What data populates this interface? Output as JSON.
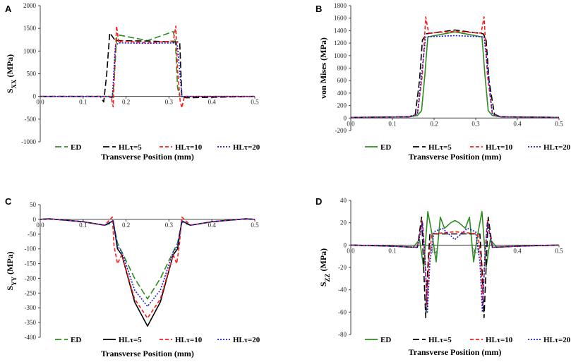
{
  "colors": {
    "ED": "#2e8b1f",
    "HL5": "#000000",
    "HL10": "#ff1a1a",
    "HL20": "#1a1acc"
  },
  "chart_data": [
    {
      "panel": "A",
      "type": "line",
      "xlabel": "Transverse Position (mm)",
      "ylabel": {
        "main": "S",
        "sub": "XX",
        "rest": " (MPa)"
      },
      "xlim": [
        0,
        0.5
      ],
      "ylim": [
        -1000,
        2000
      ],
      "xticks": [
        "0.0",
        "0.1",
        "0.2",
        "0.3",
        "0.4",
        "0.5"
      ],
      "yticks": [
        "2000",
        "1500",
        "1000",
        "500",
        "0",
        "-500",
        "-1000"
      ],
      "legend": [
        "ED",
        "HLτ=5",
        "HLτ=10",
        "HLτ=20"
      ],
      "series": [
        {
          "name": "ED",
          "color": "#2e8b1f",
          "dash": "9 4",
          "x": [
            0,
            0.16,
            0.167,
            0.172,
            0.178,
            0.185,
            0.25,
            0.31,
            0.315,
            0.32,
            0.325,
            0.5
          ],
          "y": [
            0,
            0,
            -60,
            300,
            1300,
            1350,
            1230,
            1430,
            1200,
            200,
            0,
            0
          ]
        },
        {
          "name": "HLτ=5",
          "color": "#000000",
          "dash": "9 4",
          "x": [
            0,
            0.14,
            0.148,
            0.155,
            0.162,
            0.175,
            0.25,
            0.315,
            0.325,
            0.33,
            0.34,
            0.5
          ],
          "y": [
            0,
            0,
            -120,
            500,
            1400,
            1230,
            1220,
            1200,
            1200,
            0,
            -30,
            0
          ]
        },
        {
          "name": "HLτ=10",
          "color": "#ff1a1a",
          "dash": "5 3",
          "x": [
            0,
            0.165,
            0.17,
            0.173,
            0.178,
            0.183,
            0.19,
            0.25,
            0.31,
            0.316,
            0.32,
            0.326,
            0.33,
            0.336,
            0.5
          ],
          "y": [
            0,
            0,
            -230,
            600,
            1550,
            1180,
            1220,
            1180,
            1220,
            1550,
            600,
            -100,
            -250,
            0,
            0
          ]
        },
        {
          "name": "HLτ=20",
          "color": "#1a1acc",
          "dash": "2 2",
          "x": [
            0,
            0.16,
            0.168,
            0.175,
            0.182,
            0.25,
            0.315,
            0.32,
            0.33,
            0.5
          ],
          "y": [
            0,
            0,
            -40,
            1100,
            1180,
            1170,
            1180,
            1100,
            0,
            0
          ]
        }
      ]
    },
    {
      "panel": "B",
      "type": "line",
      "xlabel": "Transverse Position (mm)",
      "ylabel": {
        "main": "von Mises  (MPa)",
        "sub": "",
        "rest": ""
      },
      "xlim": [
        0,
        0.5
      ],
      "ylim": [
        -200,
        1800
      ],
      "xticks": [
        "0.0",
        "0.1",
        "0.2",
        "0.3",
        "0.4",
        "0.5"
      ],
      "yticks": [
        "1800",
        "1600",
        "1400",
        "1200",
        "1000",
        "800",
        "600",
        "400",
        "200",
        "0",
        "-200"
      ],
      "legend": [
        "ED",
        "HLτ=5",
        "HLτ=10",
        "HLτ=20"
      ],
      "series": [
        {
          "name": "ED",
          "color": "#2e8b1f",
          "dash": "",
          "x": [
            0,
            0.14,
            0.16,
            0.17,
            0.178,
            0.185,
            0.25,
            0.315,
            0.322,
            0.33,
            0.34,
            0.36,
            0.5
          ],
          "y": [
            10,
            20,
            40,
            120,
            700,
            1300,
            1380,
            1300,
            700,
            120,
            40,
            20,
            10
          ]
        },
        {
          "name": "HLτ=5",
          "color": "#000000",
          "dash": "9 4",
          "x": [
            0,
            0.14,
            0.155,
            0.165,
            0.172,
            0.182,
            0.25,
            0.318,
            0.325,
            0.332,
            0.345,
            0.36,
            0.5
          ],
          "y": [
            10,
            20,
            60,
            600,
            1250,
            1350,
            1410,
            1350,
            1250,
            600,
            60,
            20,
            10
          ]
        },
        {
          "name": "HLτ=10",
          "color": "#ff1a1a",
          "dash": "5 3",
          "x": [
            0,
            0.14,
            0.16,
            0.172,
            0.18,
            0.187,
            0.25,
            0.313,
            0.32,
            0.328,
            0.34,
            0.36,
            0.5
          ],
          "y": [
            10,
            20,
            60,
            700,
            1620,
            1360,
            1390,
            1360,
            1620,
            700,
            60,
            20,
            10
          ]
        },
        {
          "name": "HLτ=20",
          "color": "#1a1acc",
          "dash": "2 2",
          "x": [
            0,
            0.14,
            0.16,
            0.17,
            0.18,
            0.25,
            0.32,
            0.33,
            0.34,
            0.36,
            0.5
          ],
          "y": [
            10,
            20,
            60,
            700,
            1300,
            1320,
            1300,
            700,
            60,
            20,
            10
          ]
        }
      ]
    },
    {
      "panel": "C",
      "type": "line",
      "xlabel": "Transverse Position (mm)",
      "ylabel": {
        "main": "S",
        "sub": "YY",
        "rest": " (MPa)"
      },
      "xlim": [
        0,
        0.5
      ],
      "ylim": [
        -400,
        50
      ],
      "xticks": [
        "0.0",
        "0.1",
        "0.2",
        "0.3",
        "0.4",
        "0.5"
      ],
      "yticks": [
        "50",
        "0",
        "-50",
        "-100",
        "-150",
        "-200",
        "-250",
        "-300",
        "-350",
        "-400"
      ],
      "legend": [
        "ED",
        "HLτ=5",
        "HLτ=10",
        "HLτ=20"
      ],
      "series": [
        {
          "name": "ED",
          "color": "#2e8b1f",
          "dash": "9 4",
          "x": [
            0,
            0.02,
            0.1,
            0.15,
            0.17,
            0.18,
            0.19,
            0.22,
            0.25,
            0.28,
            0.31,
            0.32,
            0.33,
            0.35,
            0.4,
            0.48,
            0.5
          ],
          "y": [
            0,
            2,
            -8,
            -20,
            -10,
            -80,
            -110,
            -200,
            -270,
            -200,
            -110,
            -80,
            -10,
            -20,
            -8,
            2,
            0
          ]
        },
        {
          "name": "HLτ=5",
          "color": "#000000",
          "dash": "",
          "x": [
            0,
            0.02,
            0.1,
            0.15,
            0.17,
            0.18,
            0.19,
            0.22,
            0.25,
            0.28,
            0.31,
            0.32,
            0.33,
            0.35,
            0.4,
            0.48,
            0.5
          ],
          "y": [
            0,
            2,
            -8,
            -20,
            -5,
            -100,
            -120,
            -280,
            -362,
            -280,
            -120,
            -100,
            -5,
            -20,
            -8,
            2,
            0
          ]
        },
        {
          "name": "HLτ=10",
          "color": "#ff1a1a",
          "dash": "5 3",
          "x": [
            0,
            0.02,
            0.1,
            0.15,
            0.168,
            0.172,
            0.18,
            0.19,
            0.22,
            0.25,
            0.28,
            0.31,
            0.318,
            0.324,
            0.33,
            0.35,
            0.4,
            0.48,
            0.5
          ],
          "y": [
            0,
            2,
            -8,
            -20,
            8,
            -90,
            -150,
            -120,
            -270,
            -335,
            -270,
            -120,
            -150,
            -90,
            8,
            -20,
            -8,
            2,
            0
          ]
        },
        {
          "name": "HLτ=20",
          "color": "#1a1acc",
          "dash": "2 2",
          "x": [
            0,
            0.02,
            0.1,
            0.15,
            0.17,
            0.18,
            0.19,
            0.22,
            0.25,
            0.28,
            0.31,
            0.32,
            0.33,
            0.35,
            0.4,
            0.48,
            0.5
          ],
          "y": [
            0,
            2,
            -8,
            -20,
            -5,
            -90,
            -110,
            -240,
            -295,
            -240,
            -110,
            -90,
            -5,
            -20,
            -8,
            2,
            0
          ]
        }
      ]
    },
    {
      "panel": "D",
      "type": "line",
      "xlabel": "Transverse Position (mm)",
      "ylabel": {
        "main": "S",
        "sub": "ZZ",
        "rest": " (MPa)"
      },
      "xlim": [
        0,
        0.5
      ],
      "ylim": [
        -80,
        40
      ],
      "xticks": [
        "0.0",
        "0.1",
        "0.2",
        "0.3",
        "0.4",
        "0.5"
      ],
      "yticks": [
        "40",
        "20",
        "0",
        "-20",
        "-40",
        "-60",
        "-80"
      ],
      "legend": [
        "ED",
        "HLτ=5",
        "HLτ=10",
        "HLτ=20"
      ],
      "series": [
        {
          "name": "ED",
          "color": "#2e8b1f",
          "dash": "",
          "x": [
            0,
            0.1,
            0.15,
            0.165,
            0.175,
            0.185,
            0.195,
            0.205,
            0.215,
            0.225,
            0.24,
            0.25,
            0.26,
            0.275,
            0.285,
            0.295,
            0.305,
            0.315,
            0.325,
            0.335,
            0.35,
            0.4,
            0.5
          ],
          "y": [
            0,
            -1,
            -2,
            5,
            -20,
            30,
            10,
            -15,
            25,
            15,
            20,
            22,
            20,
            15,
            25,
            -15,
            10,
            30,
            -20,
            5,
            -2,
            -1,
            0
          ]
        },
        {
          "name": "HLτ=5",
          "color": "#000000",
          "dash": "9 4",
          "x": [
            0,
            0.1,
            0.16,
            0.17,
            0.175,
            0.18,
            0.185,
            0.19,
            0.25,
            0.31,
            0.315,
            0.32,
            0.325,
            0.33,
            0.34,
            0.4,
            0.5
          ],
          "y": [
            0,
            -1,
            -2,
            25,
            -20,
            -65,
            -20,
            10,
            10,
            10,
            -20,
            -65,
            -20,
            25,
            -2,
            -1,
            0
          ]
        },
        {
          "name": "HLτ=10",
          "color": "#ff1a1a",
          "dash": "5 3",
          "x": [
            0,
            0.1,
            0.16,
            0.172,
            0.178,
            0.183,
            0.188,
            0.195,
            0.25,
            0.305,
            0.312,
            0.317,
            0.322,
            0.328,
            0.34,
            0.4,
            0.5
          ],
          "y": [
            0,
            -1,
            -2,
            22,
            -10,
            -55,
            -10,
            10,
            12,
            10,
            -10,
            -55,
            -10,
            22,
            -2,
            -1,
            0
          ]
        },
        {
          "name": "HLτ=20",
          "color": "#1a1acc",
          "dash": "2 2",
          "x": [
            0,
            0.1,
            0.16,
            0.172,
            0.178,
            0.184,
            0.19,
            0.2,
            0.22,
            0.25,
            0.28,
            0.3,
            0.31,
            0.316,
            0.322,
            0.328,
            0.34,
            0.4,
            0.5
          ],
          "y": [
            0,
            -1,
            -2,
            20,
            -10,
            -60,
            -15,
            12,
            15,
            5,
            15,
            12,
            -15,
            -60,
            -10,
            20,
            -2,
            -1,
            0
          ]
        }
      ]
    }
  ]
}
